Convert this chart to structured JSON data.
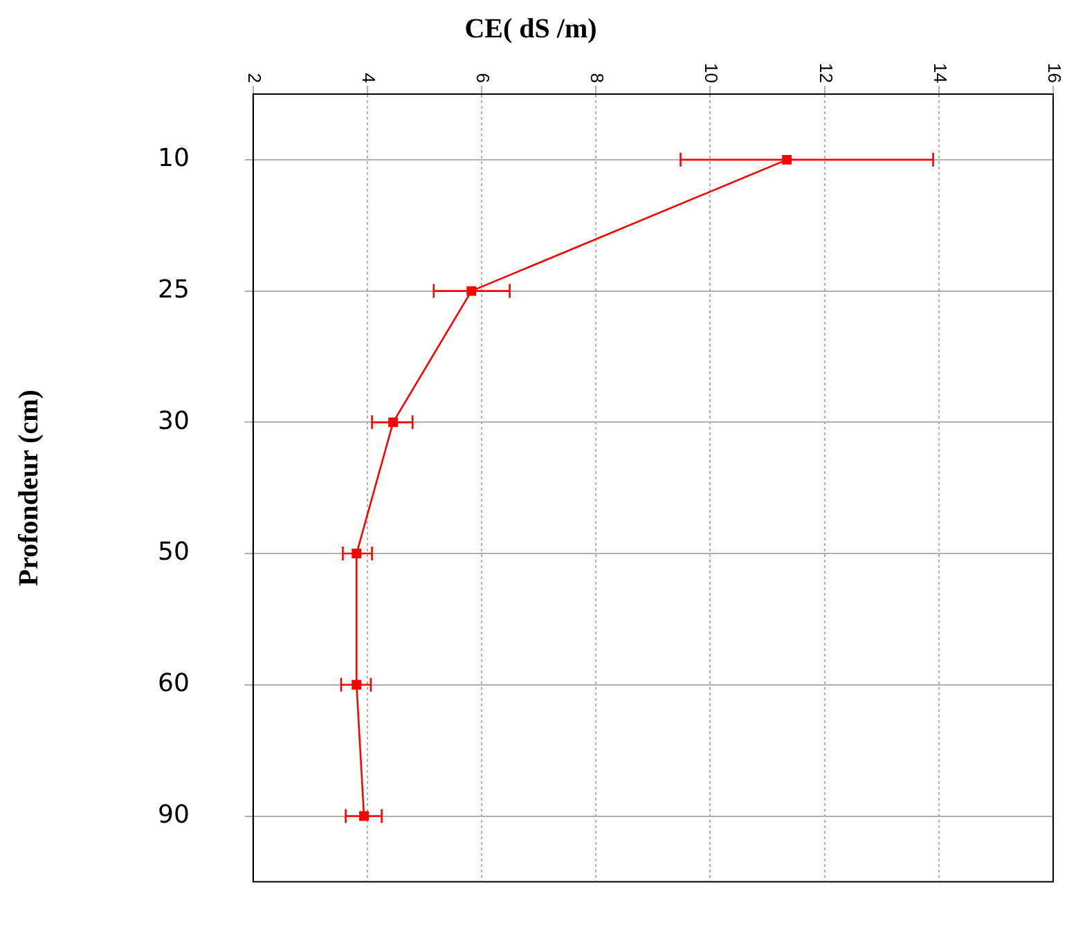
{
  "chart_data": {
    "type": "line",
    "title": "CE( dS /m)",
    "ylabel": "Profondeur (cm)",
    "categories": [
      "10",
      "25",
      "30",
      "50",
      "60",
      "90"
    ],
    "series": [
      {
        "color": "#ff0000",
        "values": [
          11.34,
          5.82,
          4.45,
          3.81,
          3.81,
          3.94
        ],
        "errors": [
          [
            9.48,
            13.9
          ],
          [
            5.16,
            6.49
          ],
          [
            4.08,
            4.79
          ],
          [
            3.57,
            4.08
          ],
          [
            3.54,
            4.06
          ],
          [
            3.62,
            4.25
          ]
        ]
      }
    ],
    "orientation": "horizontal",
    "xlim": [
      2,
      16
    ],
    "xticks": [
      2,
      4,
      6,
      8,
      10,
      12,
      14,
      16
    ],
    "grid": true,
    "marker": "square",
    "line_style": "solid",
    "legend": false
  }
}
